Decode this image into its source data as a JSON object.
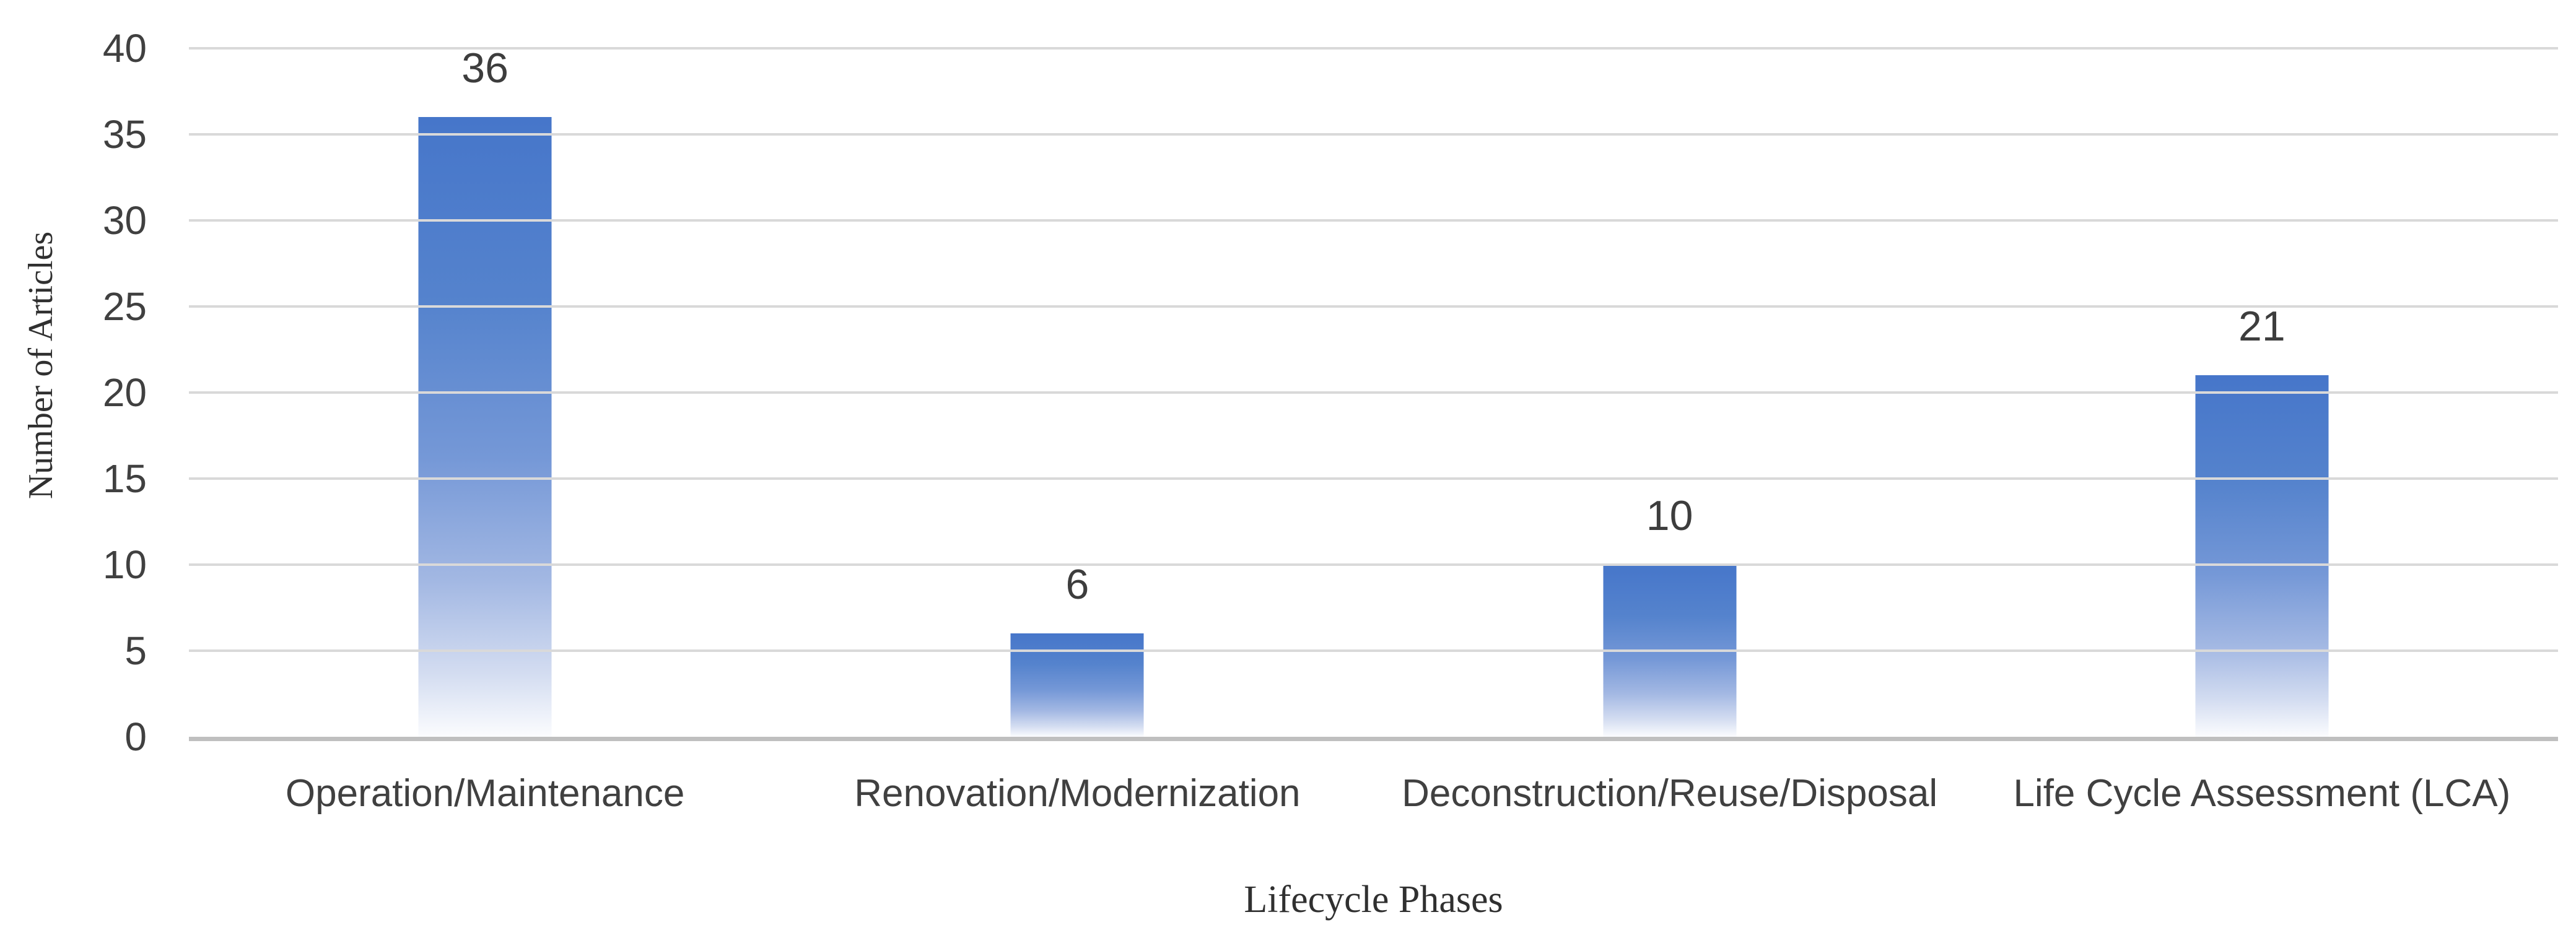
{
  "chart_data": {
    "type": "bar",
    "title": "",
    "xlabel": "Lifecycle Phases",
    "ylabel": "Number of Articles",
    "categories": [
      "Operation/Maintenance",
      "Renovation/Modernization",
      "Deconstruction/Reuse/Disposal",
      "Life Cycle Assessment (LCA)"
    ],
    "values": [
      36,
      6,
      10,
      21
    ],
    "data_labels": [
      "36",
      "6",
      "10",
      "21"
    ],
    "ylim": [
      0,
      40
    ],
    "yticks": [
      0,
      5,
      10,
      15,
      20,
      25,
      30,
      35,
      40
    ],
    "grid": "horizontal-only",
    "legend": "none",
    "colors": {
      "bar_top": "#4676CA",
      "bar_bottom": "#FBFCFE",
      "gridline": "#D9D9D9",
      "axis_line": "#BFBFBF",
      "tick_text": "#404040",
      "category_text": "#404040",
      "data_label_text": "#3D3D3D",
      "axis_title_text": "#303030",
      "background": "#FFFFFF"
    }
  }
}
